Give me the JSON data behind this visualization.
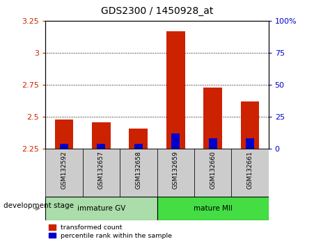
{
  "title": "GDS2300 / 1450928_at",
  "samples": [
    "GSM132592",
    "GSM132657",
    "GSM132658",
    "GSM132659",
    "GSM132660",
    "GSM132661"
  ],
  "transformed_counts": [
    2.48,
    2.46,
    2.41,
    3.17,
    2.73,
    2.62
  ],
  "percentile_ranks": [
    4,
    4,
    4,
    12,
    8,
    8
  ],
  "baseline": 2.25,
  "ylim_left": [
    2.25,
    3.25
  ],
  "ylim_right": [
    0,
    100
  ],
  "yticks_left": [
    2.25,
    2.5,
    2.75,
    3.0,
    3.25
  ],
  "yticks_right": [
    0,
    25,
    50,
    75,
    100
  ],
  "ytick_labels_left": [
    "2.25",
    "2.5",
    "2.75",
    "3",
    "3.25"
  ],
  "ytick_labels_right": [
    "0",
    "25",
    "50",
    "75",
    "100%"
  ],
  "groups": [
    {
      "label": "immature GV",
      "indices": [
        0,
        1,
        2
      ],
      "color": "#aaddaa"
    },
    {
      "label": "mature MII",
      "indices": [
        3,
        4,
        5
      ],
      "color": "#44dd44"
    }
  ],
  "group_label": "development stage",
  "bar_color_red": "#cc2200",
  "bar_color_blue": "#0000cc",
  "legend_red": "transformed count",
  "legend_blue": "percentile rank within the sample",
  "plot_bg": "#ffffff",
  "tick_area_bg": "#cccccc",
  "bar_width": 0.5,
  "title_fontsize": 10,
  "tick_fontsize": 8,
  "label_fontsize": 7.5
}
